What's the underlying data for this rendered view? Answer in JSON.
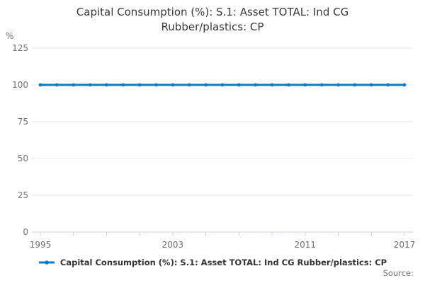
{
  "header": {
    "title_line1": "Capital Consumption (%): S.1: Asset TOTAL: Ind CG",
    "title_line2": "Rubber/plastics: CP"
  },
  "y_axis": {
    "unit_label": "%"
  },
  "legend": {
    "series_label": "Capital Consumption (%): S.1: Asset TOTAL: Ind CG Rubber/plastics: CP"
  },
  "footer": {
    "source_label": "Source:"
  },
  "colors": {
    "series_line": "#107dc2",
    "gridline": "#e7e7e7",
    "axis_line": "#c9d3e2",
    "muted_text": "#6e6e6e",
    "title_text": "#383838"
  },
  "chart_data": {
    "type": "line",
    "title": "Capital Consumption (%): S.1: Asset TOTAL: Ind CG Rubber/plastics: CP",
    "x": [
      1995,
      1996,
      1997,
      1998,
      1999,
      2000,
      2001,
      2002,
      2003,
      2004,
      2005,
      2006,
      2007,
      2008,
      2009,
      2010,
      2011,
      2012,
      2013,
      2014,
      2015,
      2016,
      2017
    ],
    "series": [
      {
        "name": "Capital Consumption (%): S.1: Asset TOTAL: Ind CG Rubber/plastics: CP",
        "values": [
          100,
          100,
          100,
          100,
          100,
          100,
          100,
          100,
          100,
          100,
          100,
          100,
          100,
          100,
          100,
          100,
          100,
          100,
          100,
          100,
          100,
          100,
          100
        ]
      }
    ],
    "xlabel": "",
    "ylabel": "%",
    "xlim": [
      1995,
      2017
    ],
    "ylim": [
      0,
      125
    ],
    "yticks": [
      0,
      25,
      50,
      75,
      100,
      125
    ],
    "xticks": [
      1995,
      1997,
      1999,
      2001,
      2003,
      2005,
      2007,
      2009,
      2011,
      2013,
      2015,
      2017
    ],
    "xtick_labels": [
      1995,
      2003,
      2011,
      2017
    ],
    "grid": "horizontal",
    "legend_position": "bottom",
    "marker": "circle"
  }
}
